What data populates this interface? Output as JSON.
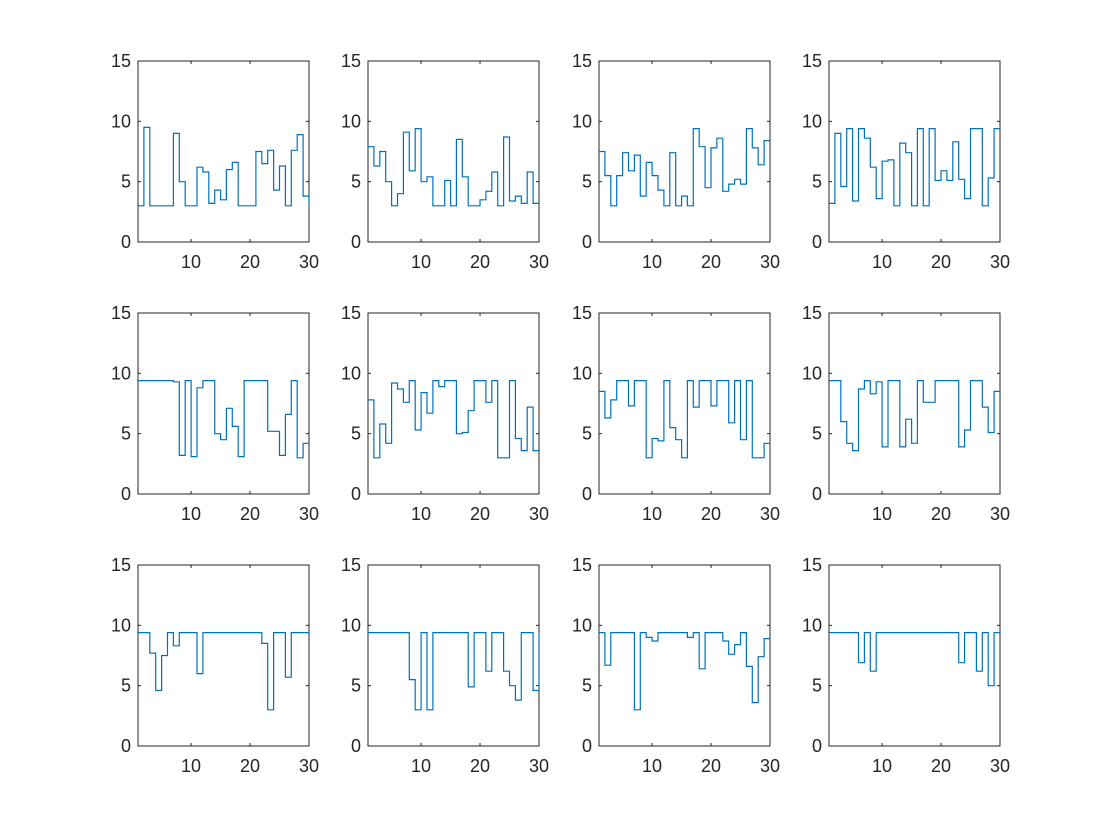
{
  "chart_data": [
    {
      "type": "line",
      "step": true,
      "xlim": [
        1,
        30
      ],
      "ylim": [
        0,
        15
      ],
      "xticks": [
        "10",
        "20",
        "30"
      ],
      "yticks": [
        "0",
        "5",
        "10",
        "15"
      ],
      "series": [
        {
          "x": [
            1,
            2,
            3,
            4,
            5,
            6,
            7,
            8,
            9,
            10,
            11,
            12,
            13,
            14,
            15,
            16,
            17,
            18,
            19,
            20,
            21,
            22,
            23,
            24,
            25,
            26,
            27,
            28,
            29,
            30
          ],
          "values": [
            3,
            9.5,
            3,
            3,
            3,
            3,
            9,
            5,
            3,
            3,
            6.2,
            5.8,
            3.2,
            4.3,
            3.5,
            6,
            6.6,
            3,
            3,
            3,
            7.5,
            6.5,
            7.6,
            4.3,
            6.3,
            3,
            7.6,
            8.9,
            3.8,
            3
          ]
        }
      ]
    },
    {
      "type": "line",
      "step": true,
      "xlim": [
        1,
        30
      ],
      "ylim": [
        0,
        15
      ],
      "xticks": [
        "10",
        "20",
        "30"
      ],
      "yticks": [
        "0",
        "5",
        "10",
        "15"
      ],
      "series": [
        {
          "x": [
            1,
            2,
            3,
            4,
            5,
            6,
            7,
            8,
            9,
            10,
            11,
            12,
            13,
            14,
            15,
            16,
            17,
            18,
            19,
            20,
            21,
            22,
            23,
            24,
            25,
            26,
            27,
            28,
            29,
            30
          ],
          "values": [
            7.9,
            6.3,
            7.5,
            5,
            3,
            4,
            9.1,
            5.9,
            9.4,
            5,
            5.4,
            3,
            3,
            5.1,
            3,
            8.5,
            5.4,
            3,
            3,
            3.5,
            4.2,
            5.8,
            3,
            8.7,
            3.4,
            3.8,
            3.2,
            5.8,
            3.2,
            3.2
          ]
        }
      ]
    },
    {
      "type": "line",
      "step": true,
      "xlim": [
        1,
        30
      ],
      "ylim": [
        0,
        15
      ],
      "xticks": [
        "10",
        "20",
        "30"
      ],
      "yticks": [
        "0",
        "5",
        "10",
        "15"
      ],
      "series": [
        {
          "x": [
            1,
            2,
            3,
            4,
            5,
            6,
            7,
            8,
            9,
            10,
            11,
            12,
            13,
            14,
            15,
            16,
            17,
            18,
            19,
            20,
            21,
            22,
            23,
            24,
            25,
            26,
            27,
            28,
            29,
            30
          ],
          "values": [
            7.5,
            5.5,
            3,
            5.5,
            7.4,
            5.9,
            7.2,
            3.8,
            6.6,
            5.5,
            4.3,
            3,
            7.4,
            3,
            3.8,
            3,
            9.4,
            7.9,
            4.5,
            7.8,
            8.6,
            4.2,
            4.8,
            5.2,
            4.8,
            9.4,
            7.8,
            6.4,
            8.4,
            8.4
          ]
        }
      ]
    },
    {
      "type": "line",
      "step": true,
      "xlim": [
        1,
        30
      ],
      "ylim": [
        0,
        15
      ],
      "xticks": [
        "10",
        "20",
        "30"
      ],
      "yticks": [
        "0",
        "5",
        "10",
        "15"
      ],
      "series": [
        {
          "x": [
            1,
            2,
            3,
            4,
            5,
            6,
            7,
            8,
            9,
            10,
            11,
            12,
            13,
            14,
            15,
            16,
            17,
            18,
            19,
            20,
            21,
            22,
            23,
            24,
            25,
            26,
            27,
            28,
            29,
            30
          ],
          "values": [
            3.2,
            9,
            4.6,
            9.4,
            3.4,
            9.4,
            8.6,
            6.2,
            3.6,
            6.7,
            6.8,
            3,
            8.2,
            7.4,
            3,
            9.4,
            3,
            9.4,
            5.1,
            5.9,
            5.1,
            8.3,
            5.2,
            3.6,
            9.4,
            9.4,
            3,
            5.3,
            9.4,
            9.4
          ]
        }
      ]
    },
    {
      "type": "line",
      "step": true,
      "xlim": [
        1,
        30
      ],
      "ylim": [
        0,
        15
      ],
      "xticks": [
        "10",
        "20",
        "30"
      ],
      "yticks": [
        "0",
        "5",
        "10",
        "15"
      ],
      "series": [
        {
          "x": [
            1,
            2,
            3,
            4,
            5,
            6,
            7,
            8,
            9,
            10,
            11,
            12,
            13,
            14,
            15,
            16,
            17,
            18,
            19,
            20,
            21,
            22,
            23,
            24,
            25,
            26,
            27,
            28,
            29,
            30
          ],
          "values": [
            9.4,
            9.4,
            9.4,
            9.4,
            9.4,
            9.4,
            9.3,
            3.2,
            9.4,
            3.1,
            8.8,
            9.4,
            9.4,
            5,
            4.5,
            7.1,
            5.6,
            3.1,
            9.4,
            9.4,
            9.4,
            9.4,
            5.2,
            5.2,
            3.2,
            6.6,
            9.4,
            3,
            4.2,
            4.2
          ]
        }
      ]
    },
    {
      "type": "line",
      "step": true,
      "xlim": [
        1,
        30
      ],
      "ylim": [
        0,
        15
      ],
      "xticks": [
        "10",
        "20",
        "30"
      ],
      "yticks": [
        "0",
        "5",
        "10",
        "15"
      ],
      "series": [
        {
          "x": [
            1,
            2,
            3,
            4,
            5,
            6,
            7,
            8,
            9,
            10,
            11,
            12,
            13,
            14,
            15,
            16,
            17,
            18,
            19,
            20,
            21,
            22,
            23,
            24,
            25,
            26,
            27,
            28,
            29,
            30
          ],
          "values": [
            7.8,
            3,
            5.8,
            4.2,
            9.2,
            8.7,
            7.6,
            9.4,
            5.3,
            8.4,
            6.7,
            9.4,
            8.9,
            9.4,
            9.4,
            5,
            5.1,
            6.9,
            9.4,
            9.4,
            7.6,
            9.4,
            3,
            3,
            9.4,
            4.6,
            3.6,
            7.2,
            3.6,
            3.6
          ]
        }
      ]
    },
    {
      "type": "line",
      "step": true,
      "xlim": [
        1,
        30
      ],
      "ylim": [
        0,
        15
      ],
      "xticks": [
        "10",
        "20",
        "30"
      ],
      "yticks": [
        "0",
        "5",
        "10",
        "15"
      ],
      "series": [
        {
          "x": [
            1,
            2,
            3,
            4,
            5,
            6,
            7,
            8,
            9,
            10,
            11,
            12,
            13,
            14,
            15,
            16,
            17,
            18,
            19,
            20,
            21,
            22,
            23,
            24,
            25,
            26,
            27,
            28,
            29,
            30
          ],
          "values": [
            8.5,
            6.3,
            7.8,
            9.4,
            9.4,
            7.3,
            9.4,
            9.4,
            3,
            4.6,
            4.4,
            9.4,
            5.5,
            4.5,
            3,
            9.4,
            7.2,
            9.4,
            9.4,
            7.3,
            9.4,
            9.4,
            5.9,
            9.4,
            4.5,
            9.4,
            3,
            3,
            4.2,
            4.2
          ]
        }
      ]
    },
    {
      "type": "line",
      "step": true,
      "xlim": [
        1,
        30
      ],
      "ylim": [
        0,
        15
      ],
      "xticks": [
        "10",
        "20",
        "30"
      ],
      "yticks": [
        "0",
        "5",
        "10",
        "15"
      ],
      "series": [
        {
          "x": [
            1,
            2,
            3,
            4,
            5,
            6,
            7,
            8,
            9,
            10,
            11,
            12,
            13,
            14,
            15,
            16,
            17,
            18,
            19,
            20,
            21,
            22,
            23,
            24,
            25,
            26,
            27,
            28,
            29,
            30
          ],
          "values": [
            9.4,
            9.4,
            6,
            4.2,
            3.6,
            8.7,
            9.4,
            8.3,
            9.3,
            3.9,
            9.4,
            9.4,
            3.9,
            6.2,
            4.2,
            9.4,
            7.6,
            7.6,
            9.4,
            9.4,
            9.4,
            9.4,
            3.9,
            5.3,
            9.4,
            9.4,
            7.2,
            5.1,
            8.5,
            8.5
          ]
        }
      ]
    },
    {
      "type": "line",
      "step": true,
      "xlim": [
        1,
        30
      ],
      "ylim": [
        0,
        15
      ],
      "xticks": [
        "10",
        "20",
        "30"
      ],
      "yticks": [
        "0",
        "5",
        "10",
        "15"
      ],
      "series": [
        {
          "x": [
            1,
            2,
            3,
            4,
            5,
            6,
            7,
            8,
            9,
            10,
            11,
            12,
            13,
            14,
            15,
            16,
            17,
            18,
            19,
            20,
            21,
            22,
            23,
            24,
            25,
            26,
            27,
            28,
            29,
            30
          ],
          "values": [
            9.4,
            9.4,
            7.7,
            4.6,
            7.5,
            9.4,
            8.3,
            9.4,
            9.4,
            9.4,
            6,
            9.4,
            9.4,
            9.4,
            9.4,
            9.4,
            9.4,
            9.4,
            9.4,
            9.4,
            9.4,
            8.5,
            3,
            9.4,
            9.4,
            5.7,
            9.4,
            9.4,
            9.4,
            9.4
          ]
        }
      ]
    },
    {
      "type": "line",
      "step": true,
      "xlim": [
        1,
        30
      ],
      "ylim": [
        0,
        15
      ],
      "xticks": [
        "10",
        "20",
        "30"
      ],
      "yticks": [
        "0",
        "5",
        "10",
        "15"
      ],
      "series": [
        {
          "x": [
            1,
            2,
            3,
            4,
            5,
            6,
            7,
            8,
            9,
            10,
            11,
            12,
            13,
            14,
            15,
            16,
            17,
            18,
            19,
            20,
            21,
            22,
            23,
            24,
            25,
            26,
            27,
            28,
            29,
            30
          ],
          "values": [
            9.4,
            9.4,
            9.4,
            9.4,
            9.4,
            9.4,
            9.4,
            5.5,
            3,
            9.4,
            3,
            9.4,
            9.4,
            9.4,
            9.4,
            9.4,
            9.4,
            4.9,
            9.4,
            9.4,
            6.2,
            9.4,
            9.4,
            6.2,
            5,
            3.8,
            9.4,
            9.4,
            4.6,
            9.4
          ]
        }
      ]
    },
    {
      "type": "line",
      "step": true,
      "xlim": [
        1,
        30
      ],
      "ylim": [
        0,
        15
      ],
      "xticks": [
        "10",
        "20",
        "30"
      ],
      "yticks": [
        "0",
        "5",
        "10",
        "15"
      ],
      "series": [
        {
          "x": [
            1,
            2,
            3,
            4,
            5,
            6,
            7,
            8,
            9,
            10,
            11,
            12,
            13,
            14,
            15,
            16,
            17,
            18,
            19,
            20,
            21,
            22,
            23,
            24,
            25,
            26,
            27,
            28,
            29,
            30
          ],
          "values": [
            9.4,
            6.7,
            9.4,
            9.4,
            9.4,
            9.4,
            3,
            9.4,
            9,
            8.7,
            9.4,
            9.4,
            9.4,
            9.4,
            9.4,
            9,
            9.4,
            6.4,
            9.4,
            9.4,
            9.4,
            8.7,
            7.6,
            8.4,
            9.4,
            6.6,
            3.6,
            7.4,
            8.9,
            8.9
          ]
        }
      ]
    },
    {
      "type": "line",
      "step": true,
      "xlim": [
        1,
        30
      ],
      "ylim": [
        0,
        15
      ],
      "xticks": [
        "10",
        "20",
        "30"
      ],
      "yticks": [
        "0",
        "5",
        "10",
        "15"
      ],
      "series": [
        {
          "x": [
            1,
            2,
            3,
            4,
            5,
            6,
            7,
            8,
            9,
            10,
            11,
            12,
            13,
            14,
            15,
            16,
            17,
            18,
            19,
            20,
            21,
            22,
            23,
            24,
            25,
            26,
            27,
            28,
            29,
            30
          ],
          "values": [
            9.4,
            9.4,
            9.4,
            9.4,
            9.4,
            6.9,
            9.4,
            6.2,
            9.4,
            9.4,
            9.4,
            9.4,
            9.4,
            9.4,
            9.4,
            9.4,
            9.4,
            9.4,
            9.4,
            9.4,
            9.4,
            9.4,
            6.9,
            9.4,
            9.4,
            6.2,
            9.4,
            5,
            9.4,
            9.4
          ]
        }
      ]
    }
  ],
  "colors": {
    "series": "#0072BD",
    "axes": "#262626",
    "background": "#ffffff"
  }
}
